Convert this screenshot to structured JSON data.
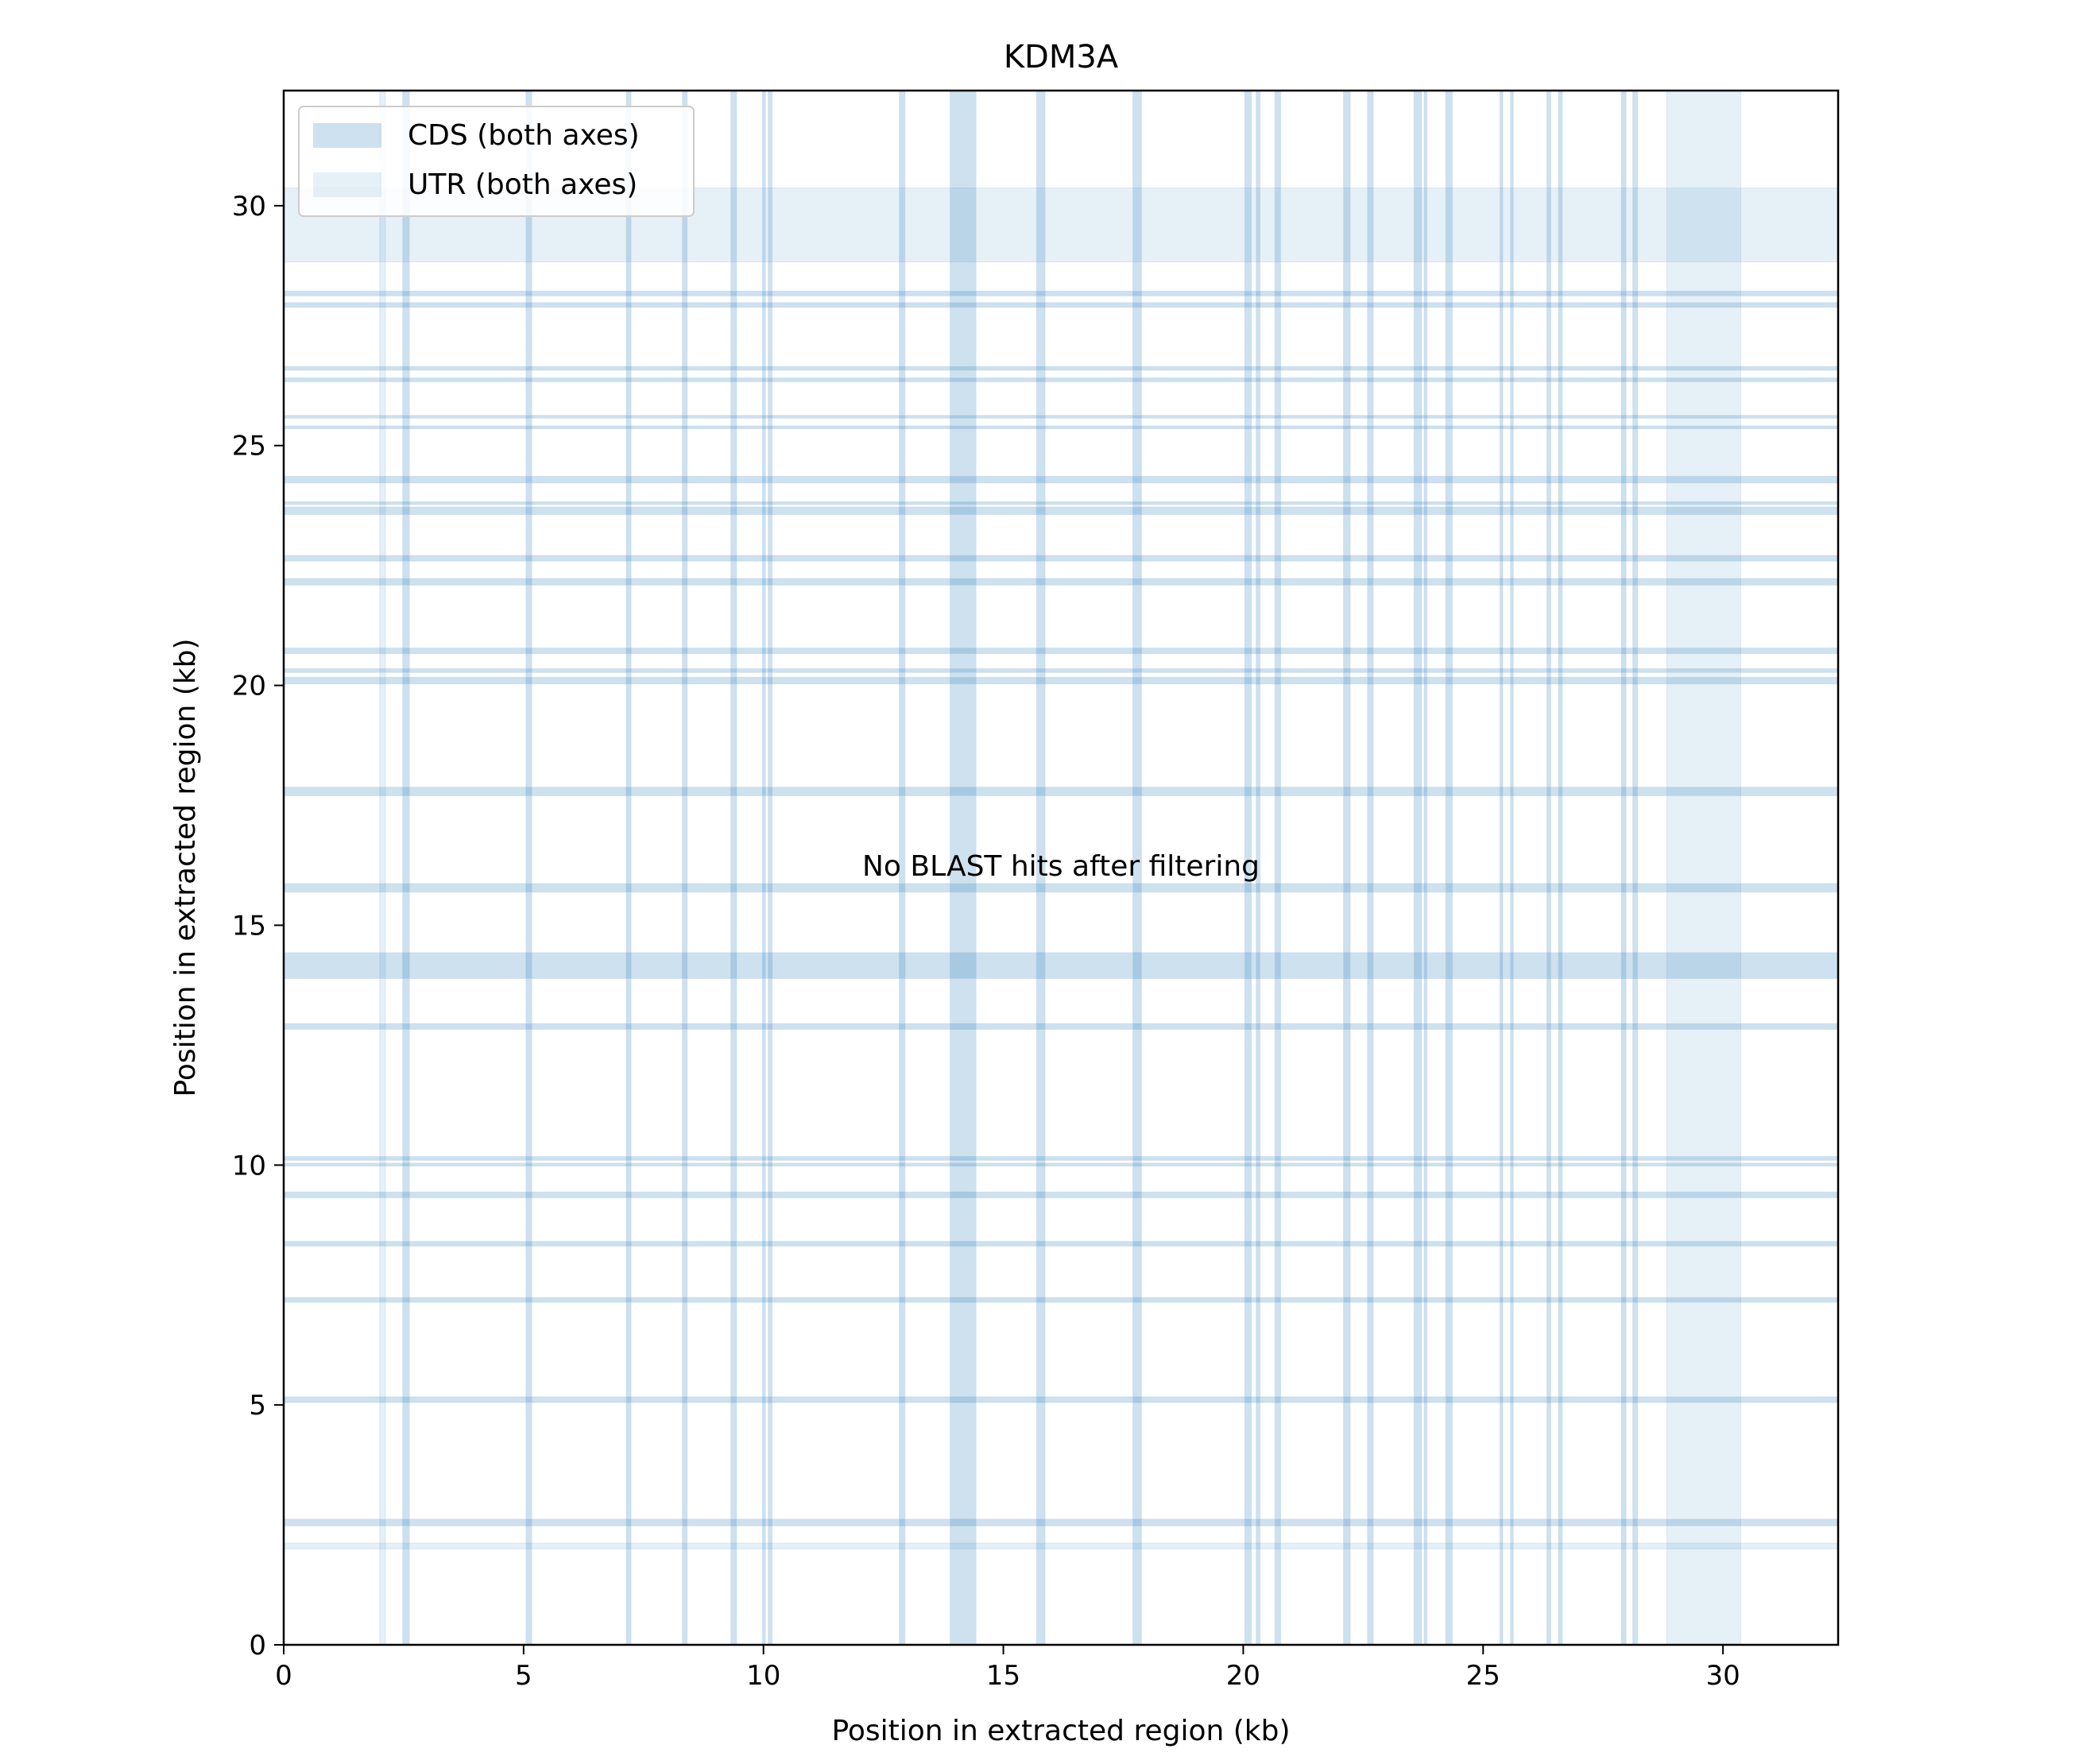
{
  "chart_data": {
    "type": "heatmap",
    "title": "KDM3A",
    "xlabel": "Position in extracted region (kb)",
    "ylabel": "Position in extracted region (kb)",
    "xlim": [
      0,
      32.4
    ],
    "ylim": [
      0,
      32.4
    ],
    "x_ticks": [
      0,
      5,
      10,
      15,
      20,
      25,
      30
    ],
    "y_ticks": [
      0,
      5,
      10,
      15,
      20,
      25,
      30
    ],
    "grid": false,
    "legend_position": "top-left",
    "legend": [
      {
        "key": "cds",
        "label": "CDS (both axes)"
      },
      {
        "key": "utr",
        "label": "UTR (both axes)"
      }
    ],
    "annotation": "No BLAST hits after filtering",
    "colors": {
      "cds": "#1f77b4",
      "cds_opacity": 0.22,
      "utr": "#1f77b4",
      "utr_opacity": 0.11,
      "band_edge": "#a9c9e2"
    },
    "utr_regions_kb": [
      [
        2.0,
        2.12
      ],
      [
        28.83,
        30.37
      ]
    ],
    "cds_regions_kb": [
      [
        2.48,
        2.62
      ],
      [
        5.05,
        5.17
      ],
      [
        7.14,
        7.24
      ],
      [
        8.31,
        8.41
      ],
      [
        9.32,
        9.44
      ],
      [
        9.98,
        10.04
      ],
      [
        10.1,
        10.18
      ],
      [
        12.83,
        12.95
      ],
      [
        13.89,
        14.43
      ],
      [
        15.69,
        15.87
      ],
      [
        17.7,
        17.88
      ],
      [
        20.03,
        20.17
      ],
      [
        20.27,
        20.35
      ],
      [
        20.66,
        20.78
      ],
      [
        22.09,
        22.23
      ],
      [
        22.59,
        22.71
      ],
      [
        23.56,
        23.72
      ],
      [
        23.77,
        23.83
      ],
      [
        24.22,
        24.36
      ],
      [
        25.35,
        25.41
      ],
      [
        25.57,
        25.63
      ],
      [
        26.33,
        26.41
      ],
      [
        26.57,
        26.65
      ],
      [
        27.88,
        27.98
      ],
      [
        28.12,
        28.22
      ]
    ]
  }
}
